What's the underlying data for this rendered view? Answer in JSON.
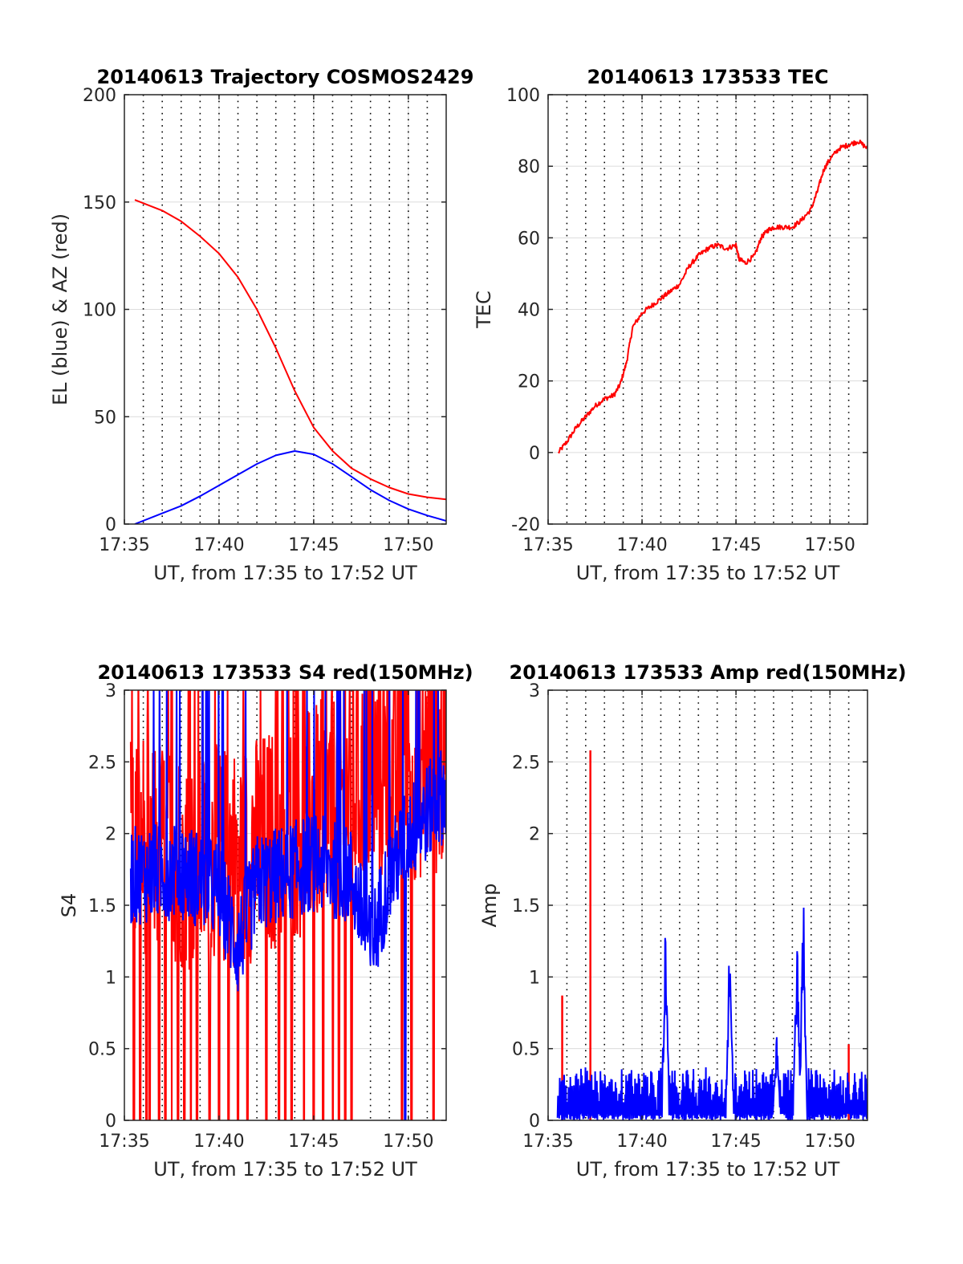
{
  "figure": {
    "background": "#ffffff"
  },
  "colors": {
    "red": "#ff0000",
    "blue": "#0000ff",
    "grid": "#dcdcdc",
    "vline": "#000000",
    "axis": "#262626"
  },
  "chart_data": [
    {
      "id": "traj",
      "type": "line",
      "title": "20140613 Trajectory COSMOS2429",
      "xlabel": "UT, from 17:35 to 17:52 UT",
      "ylabel": "EL (blue) & AZ (red)",
      "xlim": [
        "17:35",
        "17:52"
      ],
      "ylim": [
        0,
        200
      ],
      "x_ticks": [
        "17:35",
        "17:40",
        "17:45",
        "17:50"
      ],
      "y_ticks": [
        "0",
        "50",
        "100",
        "150",
        "200"
      ],
      "grid": true,
      "dotted_vlines": [
        "17:36",
        "17:37",
        "17:38",
        "17:39",
        "17:40",
        "17:41",
        "17:42",
        "17:43",
        "17:44",
        "17:45",
        "17:46",
        "17:47",
        "17:48",
        "17:49",
        "17:50",
        "17:51"
      ],
      "series": [
        {
          "color": "#ff0000",
          "points": [
            [
              "17:35:33",
              151
            ],
            [
              "17:37:00",
              146
            ],
            [
              "17:38:00",
              141
            ],
            [
              "17:39:00",
              134
            ],
            [
              "17:40:00",
              126
            ],
            [
              "17:41:00",
              115
            ],
            [
              "17:42:00",
              100
            ],
            [
              "17:43:00",
              82
            ],
            [
              "17:44:00",
              62
            ],
            [
              "17:45:00",
              45
            ],
            [
              "17:46:00",
              34
            ],
            [
              "17:47:00",
              26
            ],
            [
              "17:48:00",
              21
            ],
            [
              "17:49:00",
              17
            ],
            [
              "17:50:00",
              14
            ],
            [
              "17:51:00",
              12.5
            ],
            [
              "17:52:00",
              11.5
            ]
          ]
        },
        {
          "color": "#0000ff",
          "points": [
            [
              "17:35:33",
              0
            ],
            [
              "17:37:00",
              5
            ],
            [
              "17:38:00",
              8.5
            ],
            [
              "17:39:00",
              13
            ],
            [
              "17:40:00",
              18
            ],
            [
              "17:41:00",
              23
            ],
            [
              "17:42:00",
              28
            ],
            [
              "17:43:00",
              32
            ],
            [
              "17:44:00",
              34
            ],
            [
              "17:45:00",
              32.5
            ],
            [
              "17:46:00",
              28
            ],
            [
              "17:47:00",
              22
            ],
            [
              "17:48:00",
              16
            ],
            [
              "17:49:00",
              11
            ],
            [
              "17:50:00",
              7
            ],
            [
              "17:51:00",
              4
            ],
            [
              "17:52:00",
              1.5
            ]
          ]
        }
      ]
    },
    {
      "id": "tec",
      "type": "line",
      "title": "20140613 173533 TEC",
      "xlabel": "UT, from 17:35 to 17:52 UT",
      "ylabel": "TEC",
      "xlim": [
        "17:35",
        "17:52"
      ],
      "ylim": [
        -20,
        100
      ],
      "x_ticks": [
        "17:35",
        "17:40",
        "17:45",
        "17:50"
      ],
      "y_ticks": [
        "-20",
        "0",
        "20",
        "40",
        "60",
        "80",
        "100"
      ],
      "grid": true,
      "dotted_vlines": [
        "17:36",
        "17:37",
        "17:38",
        "17:39",
        "17:40",
        "17:41",
        "17:42",
        "17:43",
        "17:44",
        "17:45",
        "17:46",
        "17:47",
        "17:48",
        "17:49",
        "17:50",
        "17:51"
      ],
      "series": [
        {
          "color": "#ff0000",
          "points": [
            [
              "17:35:33",
              0
            ],
            [
              "17:36:00",
              3
            ],
            [
              "17:36:30",
              7
            ],
            [
              "17:37:00",
              10
            ],
            [
              "17:37:30",
              13
            ],
            [
              "17:38:00",
              15
            ],
            [
              "17:38:30",
              16
            ],
            [
              "17:38:50",
              19
            ],
            [
              "17:39:10",
              25
            ],
            [
              "17:39:30",
              35
            ],
            [
              "17:40:00",
              39
            ],
            [
              "17:40:30",
              41
            ],
            [
              "17:41:00",
              43
            ],
            [
              "17:41:30",
              45
            ],
            [
              "17:42:00",
              47
            ],
            [
              "17:42:30",
              52
            ],
            [
              "17:43:00",
              55
            ],
            [
              "17:43:30",
              57
            ],
            [
              "17:44:00",
              58
            ],
            [
              "17:44:30",
              57
            ],
            [
              "17:45:00",
              58
            ],
            [
              "17:45:10",
              54
            ],
            [
              "17:45:30",
              53
            ],
            [
              "17:46:00",
              55
            ],
            [
              "17:46:20",
              60
            ],
            [
              "17:46:40",
              62
            ],
            [
              "17:47:00",
              63
            ],
            [
              "17:47:30",
              63
            ],
            [
              "17:48:00",
              63
            ],
            [
              "17:48:30",
              65
            ],
            [
              "17:49:00",
              68
            ],
            [
              "17:49:20",
              73
            ],
            [
              "17:49:40",
              79
            ],
            [
              "17:50:00",
              82
            ],
            [
              "17:50:30",
              85
            ],
            [
              "17:51:00",
              86
            ],
            [
              "17:51:30",
              87
            ],
            [
              "17:52:00",
              85
            ]
          ]
        }
      ]
    },
    {
      "id": "s4",
      "type": "line",
      "title": "20140613 173533 S4 red(150MHz)",
      "xlabel": "UT, from 17:35 to 17:52 UT",
      "ylabel": "S4",
      "xlim": [
        "17:35",
        "17:52"
      ],
      "ylim": [
        0,
        3
      ],
      "x_ticks": [
        "17:35",
        "17:40",
        "17:45",
        "17:50"
      ],
      "y_ticks": [
        "0",
        "0.5",
        "1",
        "1.5",
        "2",
        "2.5",
        "3"
      ],
      "grid": true,
      "dotted_vlines": [
        "17:36",
        "17:37",
        "17:38",
        "17:39",
        "17:40",
        "17:41",
        "17:42",
        "17:43",
        "17:44",
        "17:45",
        "17:46",
        "17:47",
        "17:48",
        "17:49",
        "17:50",
        "17:51"
      ],
      "series": [
        {
          "color": "#ff0000",
          "noisy": true,
          "start": "17:35:20",
          "end": "17:52:00",
          "level": [
            [
              "17:35",
              2.0
            ],
            [
              "17:39",
              1.8
            ],
            [
              "17:42",
              1.9
            ],
            [
              "17:45",
              2.1
            ],
            [
              "17:48",
              2.4
            ],
            [
              "17:52",
              2.5
            ]
          ],
          "spread": 1.6,
          "dropouts": [
            "17:35:30",
            "17:35:50",
            "17:36:10",
            "17:36:20",
            "17:36:50",
            "17:37:10",
            "17:37:30",
            "17:37:50",
            "17:38:10",
            "17:38:30",
            "17:38:50",
            "17:39:30",
            "17:40:00",
            "17:40:30",
            "17:41:00",
            "17:41:30",
            "17:42:30",
            "17:43:10",
            "17:43:30",
            "17:43:50",
            "17:44:30",
            "17:45:00",
            "17:45:30",
            "17:46:00",
            "17:46:20",
            "17:46:40",
            "17:47:00",
            "17:49:40",
            "17:50:10",
            "17:51:20"
          ]
        },
        {
          "color": "#0000ff",
          "noisy": true,
          "start": "17:35:20",
          "end": "17:52:00",
          "level": [
            [
              "17:35",
              1.7
            ],
            [
              "17:38",
              1.75
            ],
            [
              "17:40",
              1.6
            ],
            [
              "17:41",
              1.2
            ],
            [
              "17:42",
              1.65
            ],
            [
              "17:45",
              1.8
            ],
            [
              "17:47",
              1.7
            ],
            [
              "17:48",
              1.2
            ],
            [
              "17:49",
              1.7
            ],
            [
              "17:50",
              2.0
            ],
            [
              "17:52",
              2.3
            ]
          ],
          "spread": 0.7,
          "dropouts": [
            "17:49:50"
          ]
        }
      ]
    },
    {
      "id": "amp",
      "type": "line",
      "title": "20140613 173533 Amp red(150MHz)",
      "xlabel": "UT, from 17:35 to 17:52 UT",
      "ylabel": "Amp",
      "xlim": [
        "17:35",
        "17:52"
      ],
      "ylim": [
        0,
        3
      ],
      "x_ticks": [
        "17:35",
        "17:40",
        "17:45",
        "17:50"
      ],
      "y_ticks": [
        "0",
        "0.5",
        "1",
        "1.5",
        "2",
        "2.5",
        "3"
      ],
      "grid": true,
      "dotted_vlines": [
        "17:36",
        "17:37",
        "17:38",
        "17:39",
        "17:40",
        "17:41",
        "17:42",
        "17:43",
        "17:44",
        "17:45",
        "17:46",
        "17:47",
        "17:48",
        "17:49",
        "17:50",
        "17:51"
      ],
      "series": [
        {
          "color": "#ff0000",
          "spikes": [
            [
              "17:35:45",
              0.87
            ],
            [
              "17:37:15",
              2.58
            ],
            [
              "17:51:00",
              0.53
            ]
          ]
        },
        {
          "color": "#0000ff",
          "noisy": true,
          "start": "17:35:30",
          "end": "17:52:00",
          "level": [
            [
              "17:35",
              0.22
            ],
            [
              "17:52",
              0.22
            ]
          ],
          "spread": 0.3,
          "bursts": [
            [
              "17:41:15",
              1.42
            ],
            [
              "17:44:40",
              1.44
            ],
            [
              "17:47:10",
              0.6
            ],
            [
              "17:48:15",
              1.3
            ],
            [
              "17:48:35",
              1.67
            ]
          ]
        }
      ]
    }
  ]
}
